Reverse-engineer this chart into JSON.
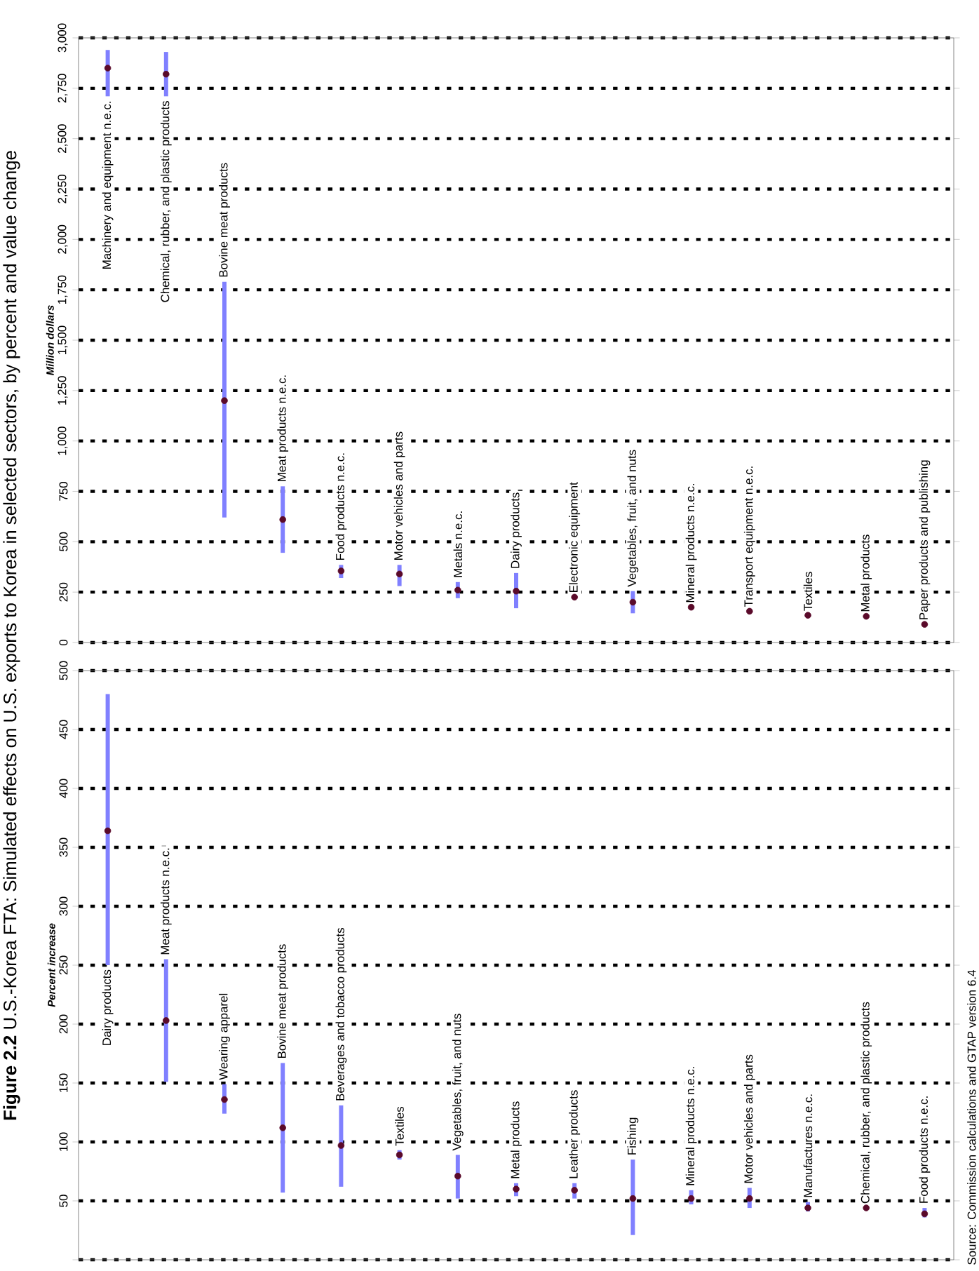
{
  "chart_data": [
    {
      "type": "scatter",
      "title": "**Figure 2.2** U.S.-Korea FTA: Simulated effects on U.S. exports to Korea in selected sectors, by percent and value change",
      "ylabel": "Million dollars",
      "categories": [
        "Machinery and equipment n.e.c.",
        "Chemical, rubber, and plastic products",
        "Bovine meat products",
        "Meat products n.e.c.",
        "Food products n.e.c.",
        "Motor vehicles and parts",
        "Metals n.e.c.",
        "Dairy products",
        "Electronic equipment",
        "Vegetables, fruit, and nuts",
        "Mineral products n.e.c.",
        "Transport equipment n.e.c.",
        "Textiles",
        "Metal products",
        "Paper products and publishing"
      ],
      "values": [
        2850,
        2820,
        1200,
        610,
        355,
        340,
        260,
        255,
        225,
        200,
        175,
        155,
        135,
        130,
        90
      ],
      "errors": [
        [
          2710,
          2940
        ],
        [
          2710,
          2930
        ],
        [
          620,
          1790
        ],
        [
          445,
          775
        ],
        [
          320,
          385
        ],
        [
          280,
          385
        ],
        [
          220,
          300
        ],
        [
          170,
          345
        ],
        null,
        [
          145,
          255
        ],
        null,
        null,
        null,
        null,
        null
      ],
      "color": "#5a0a2a",
      "grid": "y",
      "ylim": [
        0,
        3000
      ],
      "yticks": [
        0,
        250,
        500,
        750,
        {
          "value": 1000,
          "label": "1,000"
        },
        {
          "value": 1250,
          "label": "1,250"
        },
        {
          "value": 1500,
          "label": "1,500"
        },
        {
          "value": 1750,
          "label": "1,750"
        },
        {
          "value": 2000,
          "label": "2,000"
        },
        {
          "value": 2250,
          "label": "2,250"
        },
        {
          "value": 2500,
          "label": "2,500"
        },
        {
          "value": 2750,
          "label": "2,750"
        },
        {
          "value": 3000,
          "label": "3,000"
        }
      ]
    },
    {
      "type": "scatter",
      "ylabel": "Percent increase",
      "categories": [
        "Dairy products",
        "Meat products n.e.c.",
        "Wearing apparel",
        "Bovine meat products",
        "Beverages and tobacco products",
        "Textiles",
        "Vegetables, fruit, and nuts",
        "Metal products",
        "Leather products",
        "Fishing",
        "Mineral products n.e.c.",
        "Motor vehicles and parts",
        "Manufactures n.e.c.",
        "Chemical, rubber, and plastic products",
        "Food products n.e.c."
      ],
      "values": [
        364,
        203,
        136,
        112,
        97,
        89,
        71,
        60,
        59,
        52,
        52,
        52,
        44,
        44,
        39
      ],
      "errors": [
        [
          250,
          480
        ],
        [
          151,
          255
        ],
        [
          124,
          149
        ],
        [
          57,
          167
        ],
        [
          62,
          131
        ],
        [
          85,
          93
        ],
        [
          52,
          89
        ],
        [
          54,
          65
        ],
        [
          52,
          65
        ],
        [
          21,
          85
        ],
        [
          47,
          59
        ],
        [
          44,
          61
        ],
        [
          41,
          49
        ],
        null,
        [
          36,
          44
        ]
      ],
      "color": "#5a0a2a",
      "grid": "y",
      "ylim": [
        0,
        500
      ],
      "yticks": [
        {
          "value": 0,
          "label": null
        },
        50,
        100,
        150,
        200,
        250,
        300,
        350,
        400,
        450,
        500
      ],
      "annotations": [
        "Source: Commission calculations and GTAP version 6.4"
      ]
    }
  ]
}
